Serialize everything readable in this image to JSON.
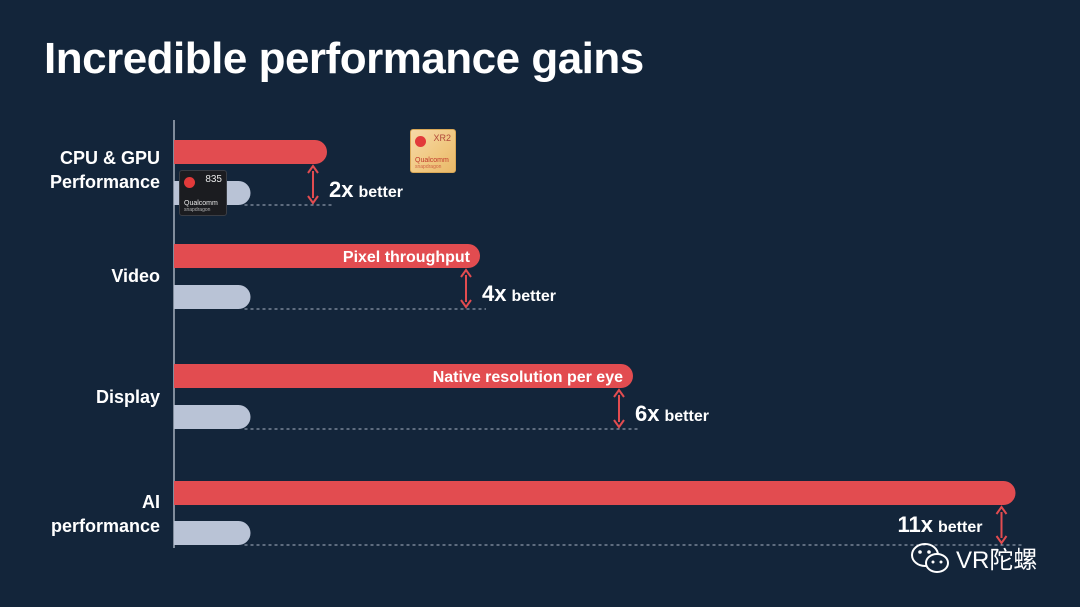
{
  "title": "Incredible performance gains",
  "colors": {
    "background": "#13253a",
    "new": "#e24c50",
    "old": "#b9c3d6",
    "text": "#ffffff"
  },
  "chips": {
    "new": {
      "model": "XR2",
      "brand": "Qualcomm",
      "sub": "snapdragon"
    },
    "old": {
      "model": "835",
      "brand": "Qualcomm",
      "sub": "snapdragon"
    }
  },
  "watermark": {
    "text": "VR陀螺",
    "icon": "wechat-icon"
  },
  "chart_data": {
    "type": "bar",
    "orientation": "horizontal",
    "categories": [
      "CPU & GPU Performance",
      "Video",
      "Display",
      "AI performance"
    ],
    "category_lines": [
      [
        "CPU & GPU",
        "Performance"
      ],
      [
        "Video"
      ],
      [
        "Display"
      ],
      [
        "AI",
        "performance"
      ]
    ],
    "series": [
      {
        "values": [
          2,
          4,
          6,
          11
        ]
      },
      {
        "values": [
          1,
          1,
          1,
          1
        ]
      }
    ],
    "bar_labels": [
      "",
      "Pixel throughput",
      "Native resolution per eye",
      ""
    ],
    "annotations": [
      {
        "number": "2x",
        "word": "better"
      },
      {
        "number": "4x",
        "word": "better"
      },
      {
        "number": "6x",
        "word": "better"
      },
      {
        "number": "11x",
        "word": "better"
      }
    ],
    "grid": false,
    "legend": "none"
  }
}
